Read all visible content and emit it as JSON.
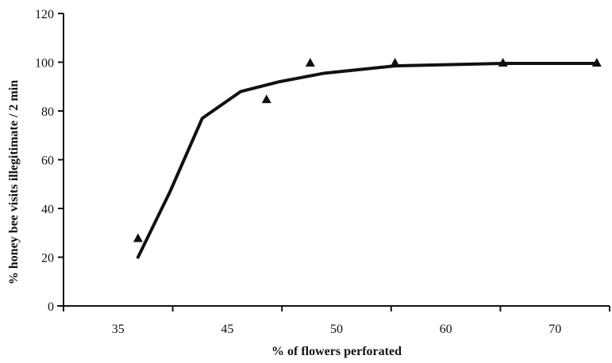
{
  "chart_data": {
    "type": "scatter",
    "title": "",
    "xlabel": "% of flowers perforated",
    "ylabel": "% honey bee visits illegitimate / 2 min",
    "xlim": [
      32.5,
      75
    ],
    "ylim": [
      0,
      120
    ],
    "x_ticks": [
      "35",
      "45",
      "50",
      "60",
      "70"
    ],
    "y_ticks": [
      "0",
      "20",
      "40",
      "60",
      "80",
      "100",
      "120"
    ],
    "grid": false,
    "legend": "none",
    "series": [
      {
        "type": "scatter",
        "marker": "triangle",
        "points": [
          {
            "x": 38.3,
            "y": 28
          },
          {
            "x": 48.3,
            "y": 85
          },
          {
            "x": 51.7,
            "y": 100
          },
          {
            "x": 58.3,
            "y": 100
          },
          {
            "x": 66.7,
            "y": 100
          },
          {
            "x": 74.0,
            "y": 100
          }
        ]
      },
      {
        "type": "line",
        "points": [
          {
            "x": 38.3,
            "y": 20
          },
          {
            "x": 40.8,
            "y": 47
          },
          {
            "x": 43.3,
            "y": 77
          },
          {
            "x": 46.3,
            "y": 88
          },
          {
            "x": 49.3,
            "y": 92
          },
          {
            "x": 52.8,
            "y": 95.5
          },
          {
            "x": 58.3,
            "y": 98.5
          },
          {
            "x": 66.7,
            "y": 99.5
          },
          {
            "x": 74.0,
            "y": 99.5
          }
        ]
      }
    ]
  }
}
